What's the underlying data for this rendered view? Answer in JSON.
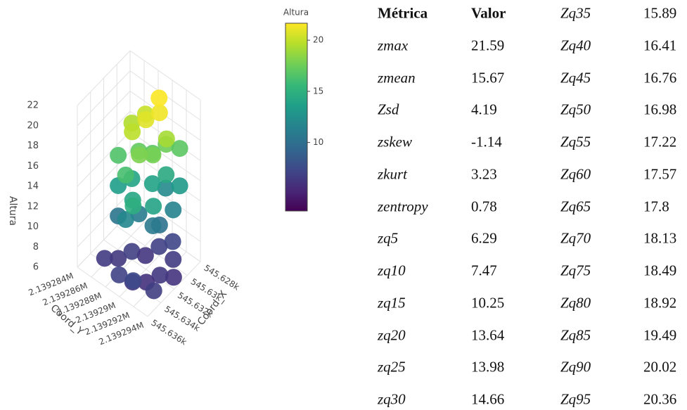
{
  "chart_data": {
    "type": "scatter3d",
    "xlabel": "Coord_X",
    "ylabel": "Coord_Y",
    "zlabel": "Altura",
    "x": [
      545634,
      545633,
      545632,
      545631,
      545630,
      545629,
      545630,
      545631,
      545632,
      545633,
      545634,
      545635,
      545635,
      545634,
      545633,
      545632,
      545631,
      545630,
      545634,
      545632,
      545629,
      545633,
      545632,
      545631,
      545630,
      545629,
      545634,
      545633,
      545635,
      545633,
      545632,
      545631,
      545630,
      545634,
      545632,
      545633,
      545629,
      545632,
      545631,
      545632,
      545631,
      545630,
      545633,
      545631
    ],
    "y": [
      2139286,
      2139287,
      2139288,
      2139289,
      2139290,
      2139291,
      2139292,
      2139293,
      2139292,
      2139291,
      2139290,
      2139289,
      2139291,
      2139293,
      2139287,
      2139289,
      2139291,
      2139292,
      2139289,
      2139291,
      2139290,
      2139287,
      2139288,
      2139290,
      2139291,
      2139292,
      2139290,
      2139292,
      2139291,
      2139287,
      2139289,
      2139290,
      2139291,
      2139289,
      2139291,
      2139290,
      2139292,
      2139288,
      2139289,
      2139290,
      2139291,
      2139290,
      2139289,
      2139292
    ],
    "z": [
      6.5,
      6.3,
      6.8,
      6.2,
      6.9,
      7.2,
      6.6,
      6.0,
      6.4,
      5.9,
      6.1,
      7.0,
      7.4,
      6.7,
      10.5,
      11.0,
      10.2,
      11.5,
      11.8,
      10.8,
      12.0,
      13.5,
      14.0,
      13.8,
      14.5,
      13.2,
      14.2,
      13.9,
      14.8,
      16.5,
      17.2,
      16.8,
      17.5,
      16.2,
      17.8,
      18.0,
      16.9,
      19.5,
      20.2,
      20.8,
      21.3,
      21.59,
      19.8,
      19.2
    ],
    "xlim": [
      545628,
      545636
    ],
    "ylim": [
      2139284,
      2139294
    ],
    "zlim": [
      6,
      22
    ],
    "xticks": [
      {
        "value": 545628,
        "label": "545.628k"
      },
      {
        "value": 545630,
        "label": "545.63k"
      },
      {
        "value": 545632,
        "label": "545.632k"
      },
      {
        "value": 545634,
        "label": "545.634k"
      },
      {
        "value": 545636,
        "label": "545.636k"
      }
    ],
    "yticks": [
      {
        "value": 2139284,
        "label": "2.139284M"
      },
      {
        "value": 2139286,
        "label": "2.139286M"
      },
      {
        "value": 2139288,
        "label": "2.139288M"
      },
      {
        "value": 2139290,
        "label": "2.13929M"
      },
      {
        "value": 2139292,
        "label": "2.139292M"
      },
      {
        "value": 2139294,
        "label": "2.139294M"
      }
    ],
    "zticks": [
      6,
      8,
      10,
      12,
      14,
      16,
      18,
      20,
      22
    ],
    "colorbar": {
      "title": "Altura",
      "lim": [
        3.3,
        21.66
      ],
      "ticks": [
        10,
        15,
        20
      ],
      "colorscale": [
        "#440154",
        "#482878",
        "#3e4989",
        "#31688e",
        "#26828e",
        "#1f9e89",
        "#35b779",
        "#6ece58",
        "#b5de2b",
        "#fde725"
      ]
    }
  },
  "table": {
    "rows": [
      [
        "Métrica",
        "Valor",
        "Zq35",
        "15.89"
      ],
      [
        "zmax",
        "21.59",
        "Zq40",
        "16.41"
      ],
      [
        "zmean",
        "15.67",
        "Zq45",
        "16.76"
      ],
      [
        "Zsd",
        "4.19",
        "Zq50",
        "16.98"
      ],
      [
        "zskew",
        "-1.14",
        "Zq55",
        "17.22"
      ],
      [
        "zkurt",
        "3.23",
        "Zq60",
        "17.57"
      ],
      [
        "zentropy",
        "0.78",
        "Zq65",
        "17.8"
      ],
      [
        "zq5",
        "6.29",
        "Zq70",
        "18.13"
      ],
      [
        "zq10",
        "7.47",
        "Zq75",
        "18.49"
      ],
      [
        "zq15",
        "10.25",
        "Zq80",
        "18.92"
      ],
      [
        "zq20",
        "13.64",
        "Zq85",
        "19.49"
      ],
      [
        "zq25",
        "13.98",
        "Zq90",
        "20.02"
      ],
      [
        "zq30",
        "14.66",
        "Zq95",
        "20.36"
      ]
    ]
  }
}
